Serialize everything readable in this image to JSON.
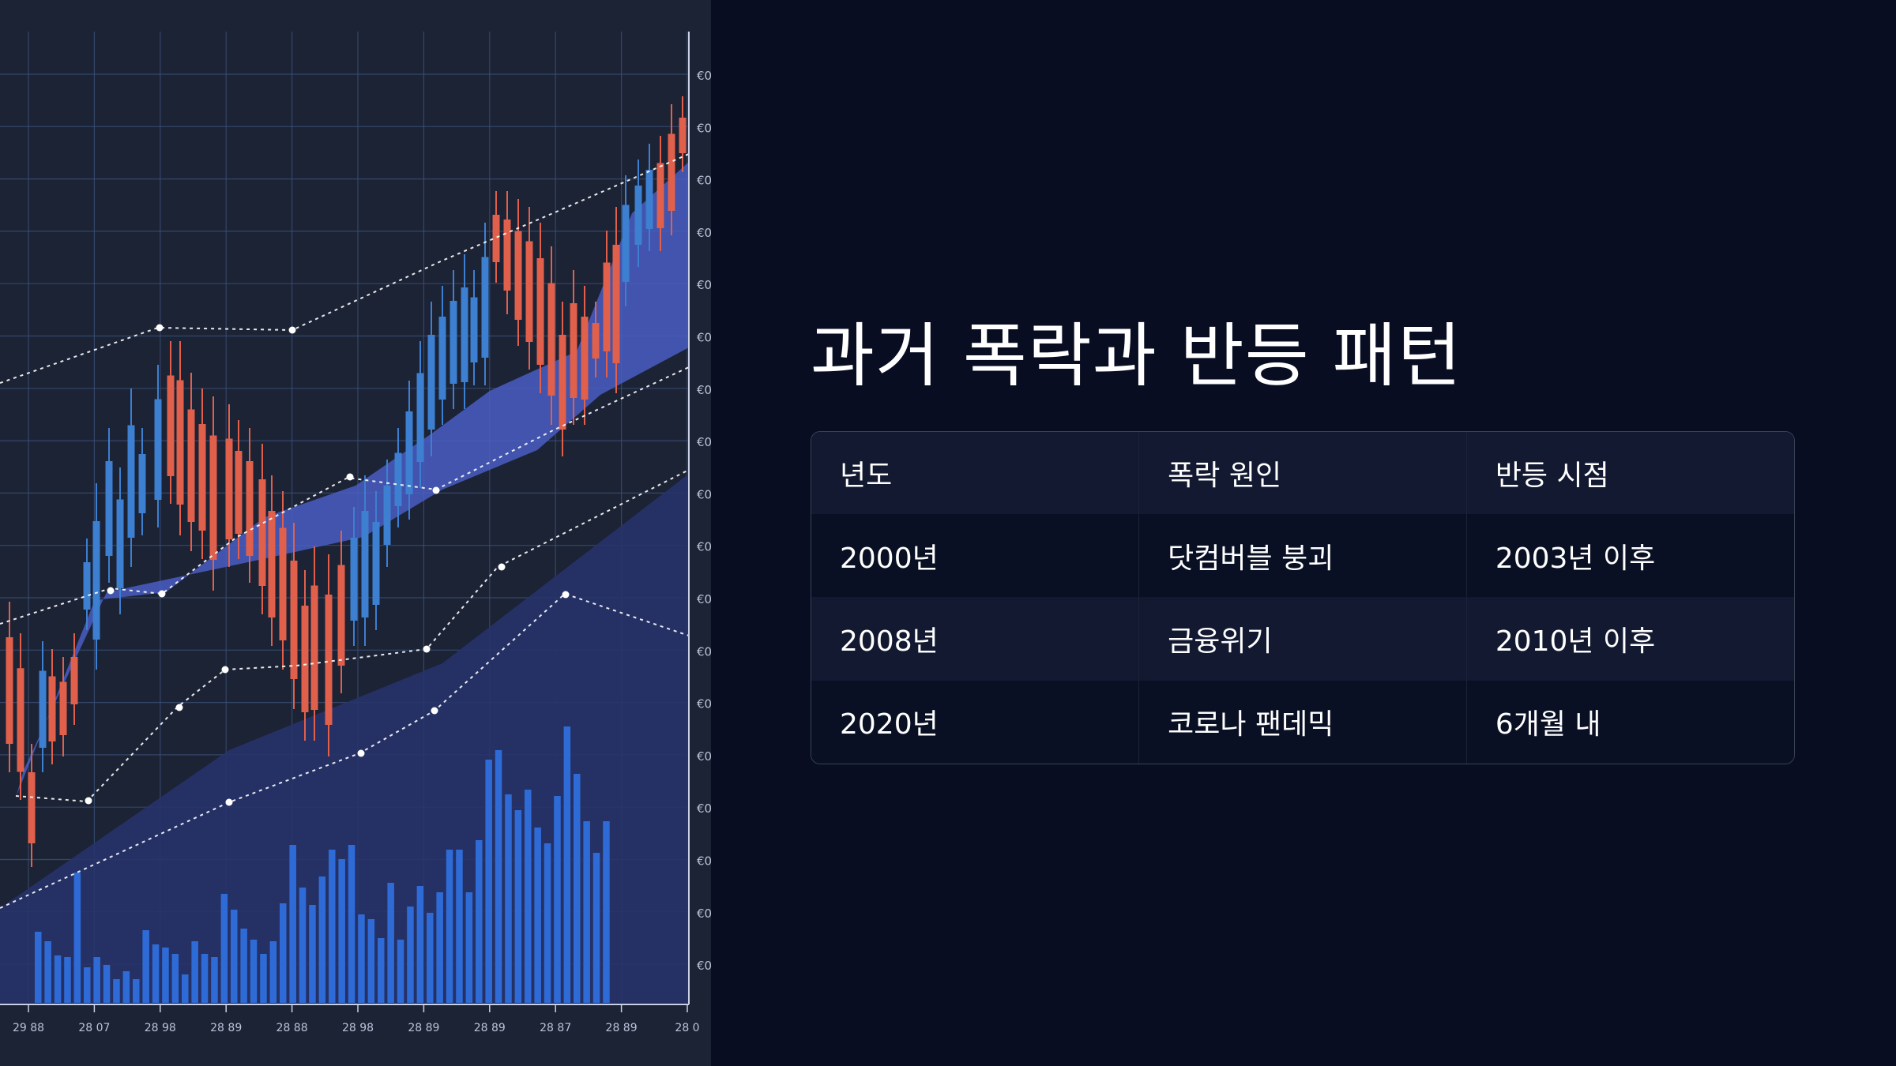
{
  "title": "과거 폭락과 반등 패턴",
  "table": {
    "headers": [
      "년도",
      "폭락 원인",
      "반등 시점"
    ],
    "rows": [
      [
        "2000년",
        "닷컴버블 붕괴",
        "2003년 이후"
      ],
      [
        "2008년",
        "금융위기",
        "2010년 이후"
      ],
      [
        "2020년",
        "코로나 팬데믹",
        "6개월 내"
      ]
    ]
  },
  "chart_image": {
    "x_tick_labels": [
      "29 88",
      "28 07",
      "28 98",
      "28 89",
      "28 88",
      "28 98",
      "28 89",
      "28 89",
      "28 87",
      "28 89",
      "28 0"
    ],
    "y_tick_label": "€0",
    "colors": {
      "background": "#1c2335",
      "grid": "#3a4f78",
      "up_candle": "#3d7fd0",
      "down_candle": "#e0604c",
      "volume": "#2f6bd6",
      "band": "#4a5fc8",
      "trend_line": "#ffffff"
    }
  }
}
